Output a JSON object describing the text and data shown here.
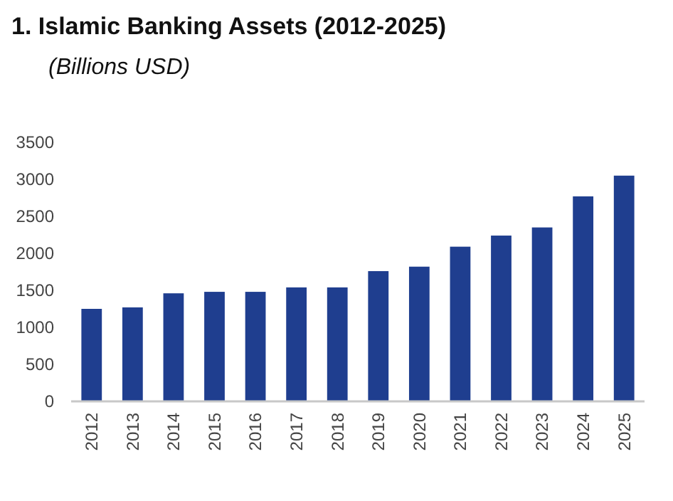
{
  "chart_data": {
    "type": "bar",
    "title": "1.  Islamic Banking Assets (2012-2025)",
    "subtitle": "(Billions USD)",
    "categories": [
      "2012",
      "2013",
      "2014",
      "2015",
      "2016",
      "2017",
      "2018",
      "2019",
      "2020",
      "2021",
      "2022",
      "2023",
      "2024",
      "2025"
    ],
    "values": [
      1250,
      1270,
      1460,
      1480,
      1480,
      1540,
      1540,
      1760,
      1820,
      2090,
      2240,
      2350,
      2770,
      3050
    ],
    "color": "#1f3e8f",
    "ylim": [
      0,
      3500
    ],
    "yticks": [
      0,
      500,
      1000,
      1500,
      2000,
      2500,
      3000,
      3500
    ],
    "grid": false
  }
}
